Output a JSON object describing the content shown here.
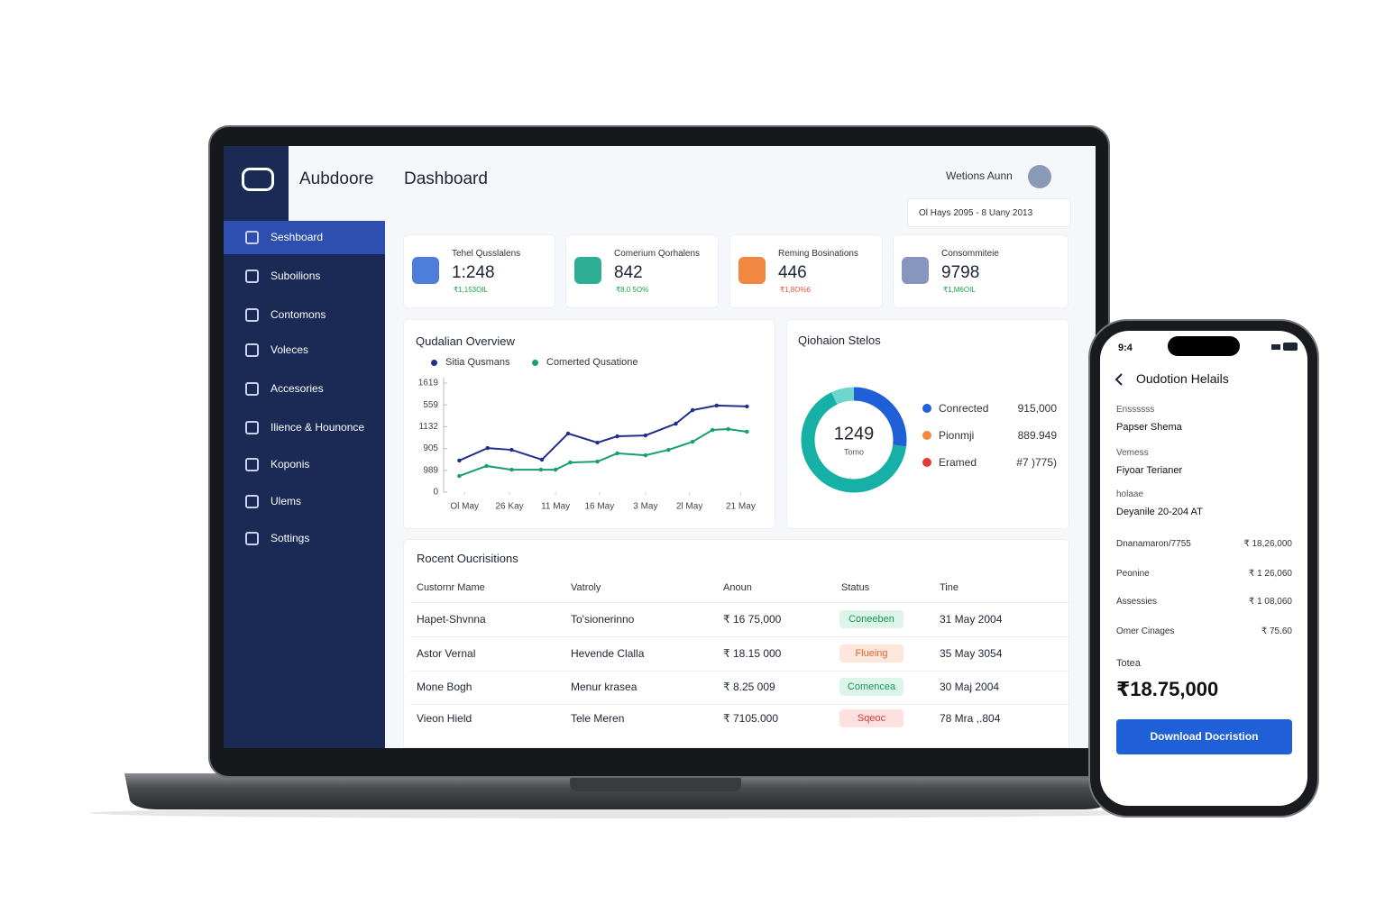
{
  "app": {
    "brand": "Aubdoore",
    "page_title": "Dashboard",
    "user": "Wetions Aunn",
    "date_range": "Ol Hays 2095 - 8 Uany 2013"
  },
  "sidebar": {
    "items": [
      "Seshboard",
      "Suboilions",
      "Contomons",
      "Voleces",
      "Accesories",
      "Ilience & Hounonce",
      "Koponis",
      "Ulems",
      "Sottings"
    ],
    "active": 0
  },
  "kpis": [
    {
      "label": "Tehel Qusslalens",
      "value": "1:248",
      "change": "₹1,153OIL",
      "color": "#3b6fd8",
      "change_color": "#16a34a"
    },
    {
      "label": "Comerium Qorhalens",
      "value": "842",
      "change": "₹8.0 5O%",
      "color": "#17a589",
      "change_color": "#16a34a"
    },
    {
      "label": "Reming Bosinations",
      "value": "446",
      "change": "₹1,8O%6",
      "color": "#f07a2c",
      "change_color": "#e5532e"
    },
    {
      "label": "Consommiteie",
      "value": "9798",
      "change": "₹1,M6OIL",
      "color": "#7a8bb8",
      "change_color": "#16a34a"
    }
  ],
  "overview": {
    "title": "Qudalian Overview",
    "series": [
      {
        "name": "Sitia Qusmans",
        "color": "#1f2f8a",
        "x": [
          1.5,
          4.2,
          6.5,
          9.4,
          11.9,
          14.7,
          16.6,
          19.3,
          22.2,
          23.8,
          26.1,
          29.0
        ],
        "values": [
          1450,
          2020,
          1940,
          1490,
          2690,
          2270,
          2560,
          2600,
          3140,
          3760,
          3970,
          3930
        ]
      },
      {
        "name": "Comerted Qusatione",
        "color": "#17a06a",
        "x": [
          1.5,
          4.1,
          6.5,
          9.3,
          10.7,
          12.1,
          14.7,
          16.6,
          19.3,
          21.5,
          23.8,
          25.7,
          27.2,
          29.0
        ],
        "values": [
          740,
          1200,
          1030,
          1030,
          1030,
          1360,
          1400,
          1780,
          1690,
          1940,
          2310,
          2850,
          2890,
          2770
        ]
      }
    ],
    "xlim": [
      0,
      30
    ],
    "ylim": [
      0,
      5000
    ],
    "xticks": [
      {
        "value": 2.0,
        "label": "Ol May"
      },
      {
        "value": 6.3,
        "label": "26 Kay"
      },
      {
        "value": 10.7,
        "label": "11 May"
      },
      {
        "value": 14.9,
        "label": "16 May"
      },
      {
        "value": 19.3,
        "label": "3 May"
      },
      {
        "value": 23.5,
        "label": "2l May"
      },
      {
        "value": 28.4,
        "label": "21 May"
      }
    ],
    "yticks": [
      0,
      {
        "value": 1000,
        "label": "989"
      },
      {
        "value": 2000,
        "label": "905"
      },
      {
        "value": 3000,
        "label": "1132"
      },
      {
        "value": 4000,
        "label": "559"
      },
      {
        "value": 5000,
        "label": "1619"
      }
    ]
  },
  "status": {
    "title": "Qiohaion Stelos",
    "total": "1249",
    "total_label": "Tomo",
    "segments": [
      {
        "value": 27,
        "color": "#1f5fd8"
      },
      {
        "value": 66,
        "color": "#17b0a6"
      },
      {
        "value": 7,
        "color": "#6fd6cb"
      }
    ],
    "legend": [
      {
        "name": "Conrected",
        "value": "915,000",
        "color": "#2060d8"
      },
      {
        "name": "Pionmji",
        "value": "889.949",
        "color": "#f08a3c"
      },
      {
        "name": "Eramed",
        "value": "#7 )775)",
        "color": "#e53935"
      }
    ]
  },
  "table": {
    "title": "Rocent Oucrisitions",
    "columns": [
      "Custornr Mame",
      "Vatroly",
      "Anoun",
      "Status",
      "Tine"
    ],
    "rows": [
      [
        "Hapet-Shvnna",
        "To'sionerinno",
        "₹ 16 75,000",
        "Coneeben",
        "31 May 2004"
      ],
      [
        "Astor Vernal",
        "Hevende Clalla",
        "₹ 18.15 000",
        "Flueing",
        "35 May 3054"
      ],
      [
        "Mone Bogh",
        "Menur krasea",
        "₹ 8.25 009",
        "Comencea",
        "30 Maj 2004"
      ],
      [
        "Vieon Hield",
        "Tele Meren",
        "₹ 7105.000",
        "Sqeoc",
        "78 Mra ,.804"
      ]
    ],
    "status_styles": [
      {
        "bg": "#dcf5e8",
        "fg": "#17945a"
      },
      {
        "bg": "#fde7dc",
        "fg": "#e0662c"
      },
      {
        "bg": "#dcf5e8",
        "fg": "#17945a"
      },
      {
        "bg": "#fde1e1",
        "fg": "#d93838"
      }
    ]
  },
  "phone": {
    "time": "9:4",
    "title": "Oudotion Helails",
    "fields": [
      {
        "label": "Enssssss",
        "value": "Papser Shema"
      },
      {
        "label": "Vemess",
        "value": "Fiyoar Terianer"
      },
      {
        "label": "holaae",
        "value": "Deyanile 20-204 AT"
      }
    ],
    "lines": [
      {
        "label": "Dnanamaron/7755",
        "value": "₹ 18,26,000"
      },
      {
        "label": "Peonine",
        "value": "₹ 1 26,060"
      },
      {
        "label": "Assessies",
        "value": "₹ 1 08,060"
      },
      {
        "label": "Omer Cinages",
        "value": "₹ 75.60"
      }
    ],
    "total_label": "Totea",
    "total": "₹18.75,000",
    "button": "Download Docristion"
  }
}
